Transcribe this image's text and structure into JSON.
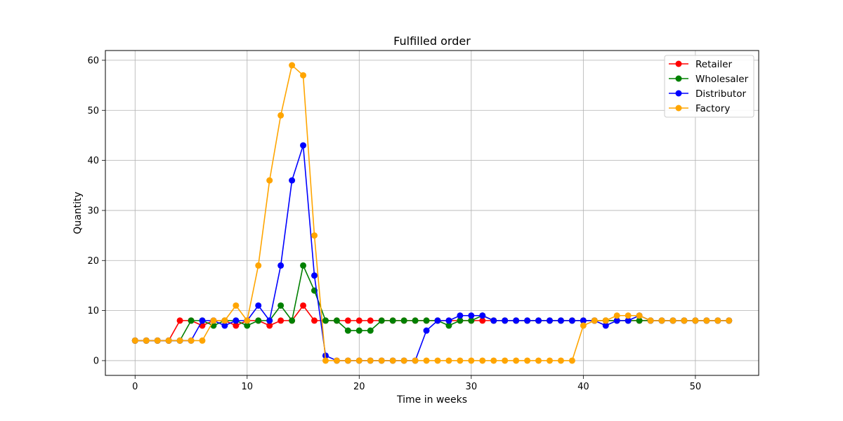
{
  "chart_data": {
    "type": "line",
    "title": "Fulfilled order",
    "xlabel": "Time in weeks",
    "ylabel": "Quantity",
    "xlim": [
      -2.65,
      55.65
    ],
    "ylim": [
      -2.95,
      61.95
    ],
    "xticks": [
      0,
      10,
      20,
      30,
      40,
      50
    ],
    "yticks": [
      0,
      10,
      20,
      30,
      40,
      50,
      60
    ],
    "grid": true,
    "legend_position": "top-right",
    "x": [
      0,
      1,
      2,
      3,
      4,
      5,
      6,
      7,
      8,
      9,
      10,
      11,
      12,
      13,
      14,
      15,
      16,
      17,
      18,
      19,
      20,
      21,
      22,
      23,
      24,
      25,
      26,
      27,
      28,
      29,
      30,
      31,
      32,
      33,
      34,
      35,
      36,
      37,
      38,
      39,
      40,
      41,
      42,
      43,
      44,
      45,
      46,
      47,
      48,
      49,
      50,
      51,
      52,
      53
    ],
    "series": [
      {
        "name": "Retailer",
        "color": "#ff0000",
        "values": [
          4,
          4,
          4,
          4,
          8,
          8,
          7,
          8,
          8,
          7,
          8,
          8,
          7,
          8,
          8,
          11,
          8,
          8,
          8,
          8,
          8,
          8,
          8,
          8,
          8,
          8,
          8,
          8,
          8,
          8,
          8,
          8,
          8,
          8,
          8,
          8,
          8,
          8,
          8,
          8,
          8,
          8,
          8,
          8,
          8,
          8,
          8,
          8,
          8,
          8,
          8,
          8,
          8,
          8
        ]
      },
      {
        "name": "Wholesaler",
        "color": "#008000",
        "values": [
          4,
          4,
          4,
          4,
          4,
          8,
          8,
          7,
          8,
          8,
          7,
          8,
          8,
          11,
          8,
          19,
          14,
          8,
          8,
          6,
          6,
          6,
          8,
          8,
          8,
          8,
          8,
          8,
          7,
          8,
          8,
          9,
          8,
          8,
          8,
          8,
          8,
          8,
          8,
          8,
          8,
          8,
          8,
          8,
          8,
          8,
          8,
          8,
          8,
          8,
          8,
          8,
          8,
          8
        ]
      },
      {
        "name": "Distributor",
        "color": "#0000ff",
        "values": [
          4,
          4,
          4,
          4,
          4,
          4,
          8,
          8,
          7,
          8,
          8,
          11,
          8,
          19,
          36,
          43,
          17,
          1,
          0,
          0,
          0,
          0,
          0,
          0,
          0,
          0,
          6,
          8,
          8,
          9,
          9,
          9,
          8,
          8,
          8,
          8,
          8,
          8,
          8,
          8,
          8,
          8,
          7,
          8,
          8,
          9,
          8,
          8,
          8,
          8,
          8,
          8,
          8,
          8
        ]
      },
      {
        "name": "Factory",
        "color": "#ffa500",
        "values": [
          4,
          4,
          4,
          4,
          4,
          4,
          4,
          8,
          8,
          11,
          8,
          19,
          36,
          49,
          59,
          57,
          25,
          0,
          0,
          0,
          0,
          0,
          0,
          0,
          0,
          0,
          0,
          0,
          0,
          0,
          0,
          0,
          0,
          0,
          0,
          0,
          0,
          0,
          0,
          0,
          7,
          8,
          8,
          9,
          9,
          9,
          8,
          8,
          8,
          8,
          8,
          8,
          8,
          8
        ]
      }
    ]
  }
}
